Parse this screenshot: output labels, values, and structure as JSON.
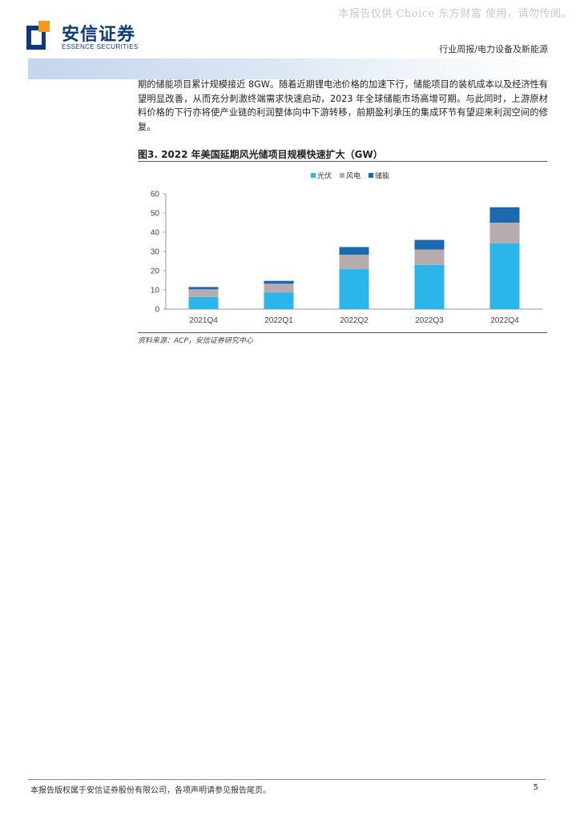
{
  "watermark": "本报告仅供 Choice 东方财富 使用，请勿传阅。",
  "header": {
    "logo_cn": "安信证券",
    "logo_en": "ESSENCE SECURITIES",
    "category": "行业周报/电力设备及新能源"
  },
  "body": {
    "paragraph": "期的储能项目累计规模接近 8GW。随着近期锂电池价格的加速下行，储能项目的装机成本以及经济性有望明显改善，从而充分刺激终端需求快速启动，2023 年全球储能市场高增可期。与此同时，上游原材料价格的下行亦将使产业链的利润整体向中下游转移，前期盈利承压的集成环节有望迎来利润空间的修复。"
  },
  "figure": {
    "title": "图3. 2022 年美国延期风光储项目规模快速扩大（GW）",
    "source": "资料来源：ACP，安信证券研究中心"
  },
  "chart_data": {
    "type": "bar",
    "stacked": true,
    "categories": [
      "2021Q4",
      "2022Q1",
      "2022Q2",
      "2022Q3",
      "2022Q4"
    ],
    "series": [
      {
        "name": "光伏",
        "color": "#2bb5e8",
        "values": [
          6.3,
          8.7,
          20.8,
          23.0,
          34.3
        ]
      },
      {
        "name": "风电",
        "color": "#b6acb0",
        "values": [
          4.0,
          4.5,
          7.5,
          8.0,
          10.7
        ]
      },
      {
        "name": "储能",
        "color": "#1d69ad",
        "values": [
          1.2,
          1.5,
          4.0,
          5.0,
          8.0
        ]
      }
    ],
    "yticks": [
      0,
      10,
      20,
      30,
      40,
      50,
      60
    ],
    "ylim": [
      0,
      60
    ],
    "legend_position": "top",
    "grid": false
  },
  "footer": {
    "disclaimer": "本报告版权属于安信证券股份有限公司，各项声明请参见报告尾页。",
    "page_number": "5"
  }
}
